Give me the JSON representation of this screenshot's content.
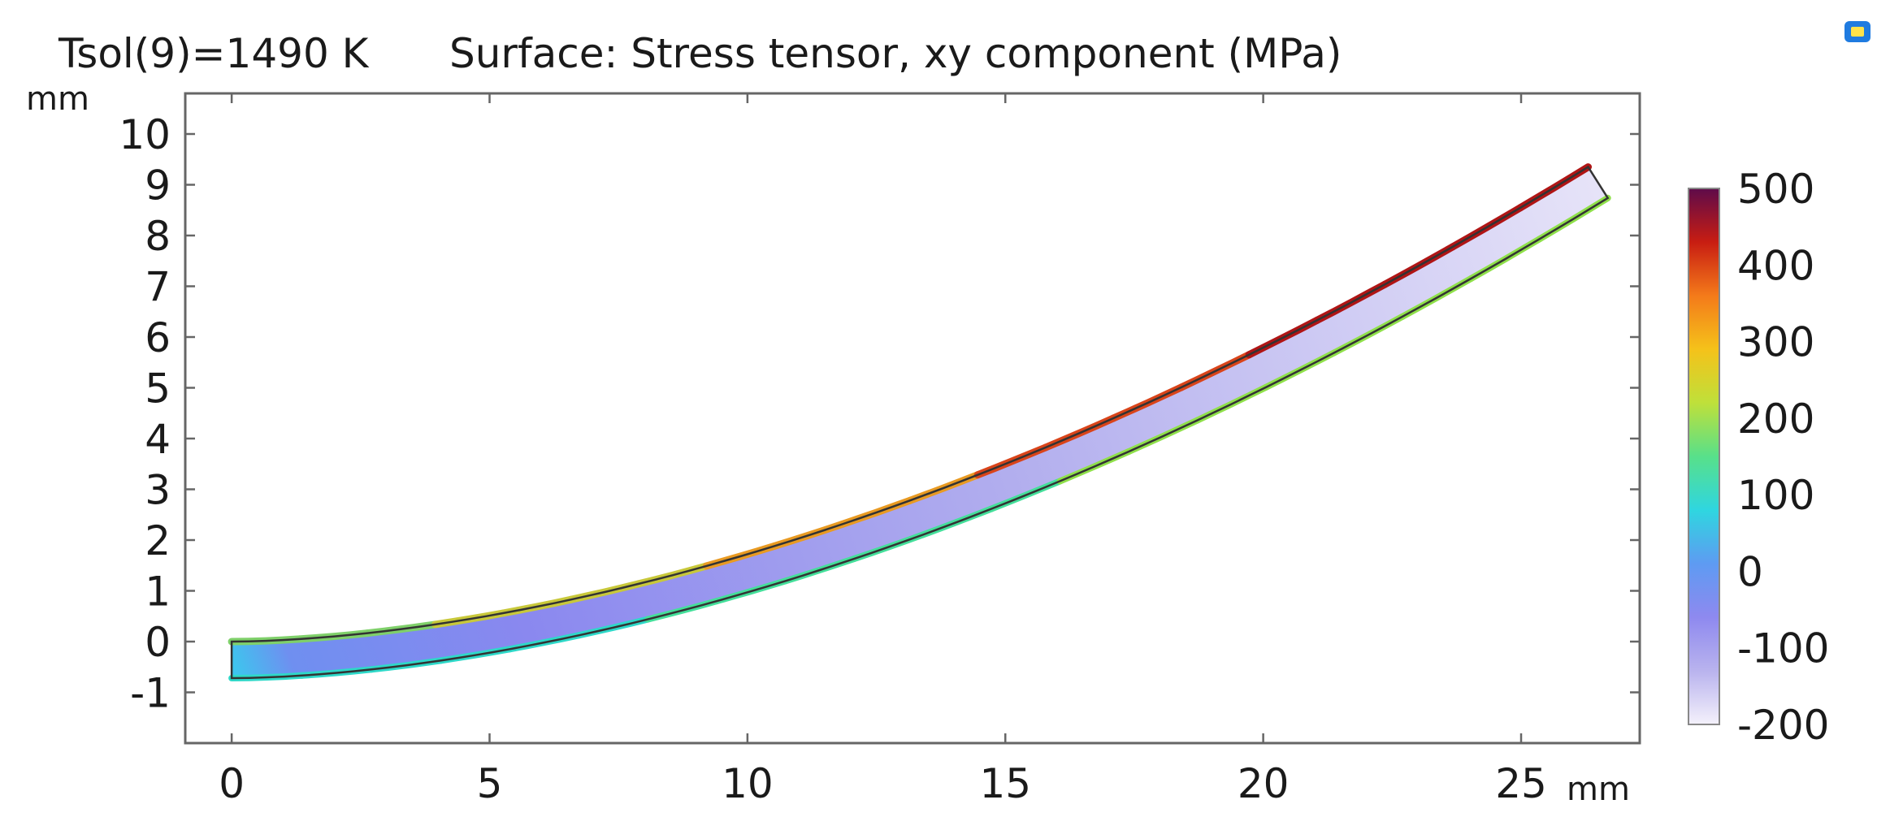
{
  "title": {
    "solution": "Tsol(9)=1490 K",
    "quantity": "Surface: Stress tensor, xy component (MPa)"
  },
  "icon": "plot-window-icon",
  "chart_data": {
    "type": "heatmap",
    "description_quantity": "Stress tensor, xy component",
    "unit": "MPa",
    "xlabel": "mm",
    "ylabel": "mm",
    "xlim": [
      -0.9,
      27.3
    ],
    "ylim": [
      -2.0,
      10.8
    ],
    "x_ticks": [
      0,
      5,
      10,
      15,
      20,
      25
    ],
    "y_ticks": [
      -1,
      0,
      1,
      2,
      3,
      4,
      5,
      6,
      7,
      8,
      9,
      10
    ],
    "grid": false,
    "colorbar": {
      "min": -200,
      "max": 500,
      "ticks": [
        500,
        400,
        300,
        200,
        100,
        0,
        -100,
        -200
      ],
      "colormap": [
        "#f4f1fb",
        "#b9b3ee",
        "#8e89ef",
        "#5e9bf2",
        "#2fd6e0",
        "#58e08a",
        "#bfe03a",
        "#f5c21a",
        "#f47a1a",
        "#c81d12",
        "#5e0b4a"
      ]
    },
    "beam": {
      "thickness": 0.72,
      "rise_at_end": 9.35,
      "length": 26.3,
      "curve_exponent": 1.75
    }
  }
}
